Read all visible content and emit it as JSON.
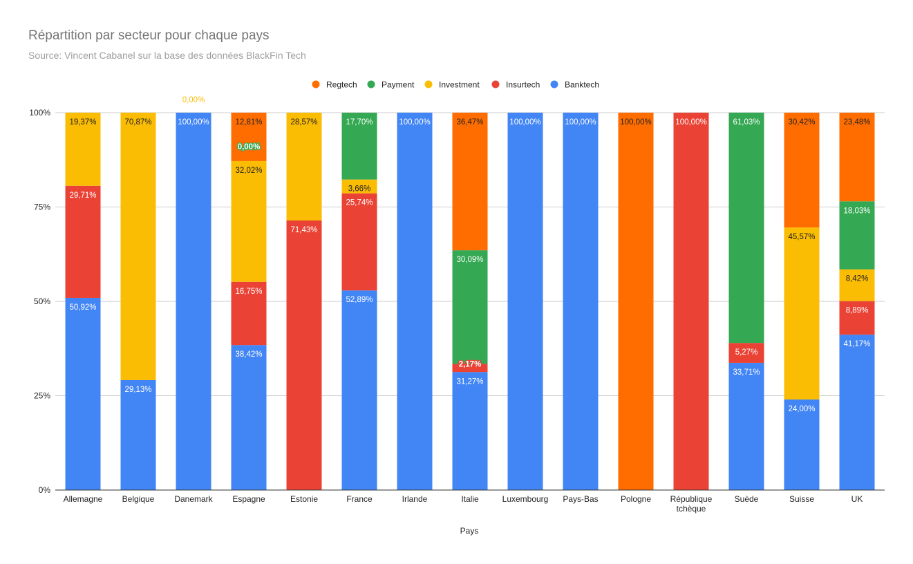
{
  "chart_data": {
    "type": "bar",
    "stacked": "percent",
    "title": "Répartition par secteur pour chaque pays",
    "subtitle": "Source: Vincent Cabanel sur la base des données BlackFin Tech",
    "xlabel": "Pays",
    "ylabel": "",
    "ylim": [
      0,
      100
    ],
    "yticks": [
      "0%",
      "25%",
      "50%",
      "75%",
      "100%"
    ],
    "grid": true,
    "legend_position": "top",
    "categories": [
      "Allemagne",
      "Belgique",
      "Danemark",
      "Espagne",
      "Estonie",
      "France",
      "Irlande",
      "Italie",
      "Luxembourg",
      "Pays-Bas",
      "Pologne",
      "République tchèque",
      "Suède",
      "Suisse",
      "UK"
    ],
    "legend_order": [
      "Regtech",
      "Payment",
      "Investment",
      "Insurtech",
      "Banktech"
    ],
    "series": [
      {
        "name": "Banktech",
        "color": "#4285f4",
        "values": [
          50.92,
          29.13,
          100,
          38.42,
          null,
          52.89,
          100,
          31.27,
          100,
          100,
          null,
          null,
          33.71,
          24.0,
          41.17
        ],
        "labels": [
          "50,92%",
          "29,13%",
          "100,00%",
          "38,42%",
          "",
          "52,89%",
          "100,00%",
          "31,27%",
          "100,00%",
          "100,00%",
          "",
          "",
          "33,71%",
          "24,00%",
          "41,17%"
        ]
      },
      {
        "name": "Insurtech",
        "color": "#ea4335",
        "values": [
          29.71,
          null,
          null,
          16.75,
          71.43,
          25.74,
          null,
          2.17,
          null,
          null,
          null,
          100,
          5.27,
          null,
          8.89
        ],
        "labels": [
          "29,71%",
          "",
          "",
          "16,75%",
          "71,43%",
          "25,74%",
          "",
          "2,17%",
          "",
          "",
          "",
          "100,00%",
          "5,27%",
          "",
          "8,89%"
        ]
      },
      {
        "name": "Investment",
        "color": "#fbbc04",
        "values": [
          19.37,
          70.87,
          0,
          32.02,
          28.57,
          3.66,
          null,
          null,
          null,
          null,
          null,
          null,
          null,
          45.57,
          8.42
        ],
        "labels": [
          "19,37%",
          "70,87%",
          "0,00%",
          "32,02%",
          "28,57%",
          "3,66%",
          "",
          "",
          "",
          "",
          "",
          "",
          "",
          "45,57%",
          "8,42%"
        ]
      },
      {
        "name": "Payment",
        "color": "#34a853",
        "values": [
          null,
          null,
          null,
          0,
          null,
          17.7,
          null,
          30.09,
          null,
          null,
          null,
          null,
          61.03,
          null,
          18.03
        ],
        "labels": [
          "",
          "",
          "",
          "0,00%",
          "",
          "17,70%",
          "",
          "30,09%",
          "",
          "",
          "",
          "",
          "61,03%",
          "",
          "18,03%"
        ]
      },
      {
        "name": "Regtech",
        "color": "#ff6d01",
        "values": [
          null,
          null,
          null,
          12.81,
          null,
          null,
          null,
          36.47,
          null,
          null,
          100,
          null,
          null,
          30.42,
          23.48
        ],
        "labels": [
          "",
          "",
          "",
          "12,81%",
          "",
          "",
          "",
          "36,47%",
          "",
          "",
          "100,00%",
          "",
          "",
          "30,42%",
          "23,48%"
        ]
      }
    ]
  }
}
